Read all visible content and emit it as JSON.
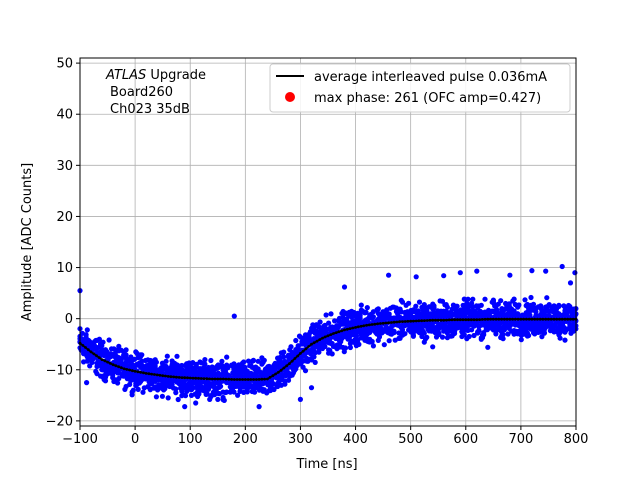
{
  "chart_data": {
    "type": "scatter",
    "xlabel": "Time [ns]",
    "ylabel": "Amplitude [ADC Counts]",
    "xlim": [
      -100,
      800
    ],
    "ylim": [
      -21,
      51
    ],
    "x_ticks": [
      -100,
      0,
      100,
      200,
      300,
      400,
      500,
      600,
      700,
      800
    ],
    "y_ticks": [
      -20,
      -10,
      0,
      10,
      20,
      30,
      40,
      50
    ],
    "x_tick_labels": [
      "−100",
      "0",
      "100",
      "200",
      "300",
      "400",
      "500",
      "600",
      "700",
      "800"
    ],
    "y_tick_labels": [
      "−20",
      "−10",
      "0",
      "10",
      "20",
      "30",
      "40",
      "50"
    ],
    "grid": true,
    "legend_position": "top-right",
    "annotation": {
      "line1_italic": "ATLAS",
      "line1_rest": " Upgrade",
      "line2": "Board260",
      "line3": "Ch023 35dB"
    },
    "series": [
      {
        "name": "average interleaved pulse 0.036mA",
        "kind": "line",
        "color": "#000000",
        "x": [
          -100,
          -80,
          -60,
          -40,
          -20,
          0,
          20,
          40,
          60,
          80,
          100,
          120,
          140,
          160,
          180,
          200,
          220,
          240,
          260,
          280,
          300,
          320,
          340,
          360,
          380,
          400,
          420,
          440,
          460,
          480,
          500,
          520,
          540,
          560,
          580,
          600,
          620,
          640,
          660,
          680,
          700,
          720,
          740,
          760,
          780,
          800
        ],
        "y": [
          -4.8,
          -6.5,
          -8.0,
          -9.0,
          -9.8,
          -10.3,
          -10.7,
          -11.0,
          -11.3,
          -11.5,
          -11.6,
          -11.7,
          -11.8,
          -11.8,
          -11.9,
          -11.9,
          -11.9,
          -11.8,
          -10.5,
          -8.8,
          -6.8,
          -5.0,
          -3.8,
          -2.9,
          -2.2,
          -1.7,
          -1.3,
          -1.0,
          -0.8,
          -0.6,
          -0.5,
          -0.4,
          -0.3,
          -0.3,
          -0.2,
          -0.2,
          -0.2,
          -0.1,
          -0.1,
          -0.1,
          -0.1,
          -0.1,
          -0.1,
          -0.1,
          -0.1,
          -0.1
        ]
      },
      {
        "name": "max phase: 261 (OFC amp=0.427)",
        "kind": "marker",
        "color": "#ff0000"
      },
      {
        "name": "",
        "kind": "scatter-band",
        "color": "#0000ff",
        "band_half_width": 5.0,
        "outliers": [
          [
            -100,
            5.5
          ],
          [
            -88,
            -12.5
          ],
          [
            60,
            -15.5
          ],
          [
            90,
            -17.2
          ],
          [
            110,
            -16.5
          ],
          [
            180,
            0.5
          ],
          [
            225,
            -17.2
          ],
          [
            150,
            -15.8
          ],
          [
            300,
            -15.8
          ],
          [
            320,
            -13.5
          ],
          [
            460,
            8.5
          ],
          [
            510,
            8.2
          ],
          [
            560,
            8.4
          ],
          [
            620,
            9.3
          ],
          [
            680,
            8.5
          ],
          [
            720,
            9.4
          ],
          [
            745,
            9.3
          ],
          [
            775,
            10.2
          ],
          [
            790,
            7.0
          ],
          [
            798,
            9.0
          ],
          [
            380,
            6.2
          ],
          [
            540,
            -5.5
          ],
          [
            640,
            -5.6
          ],
          [
            590,
            9.0
          ]
        ]
      }
    ]
  }
}
